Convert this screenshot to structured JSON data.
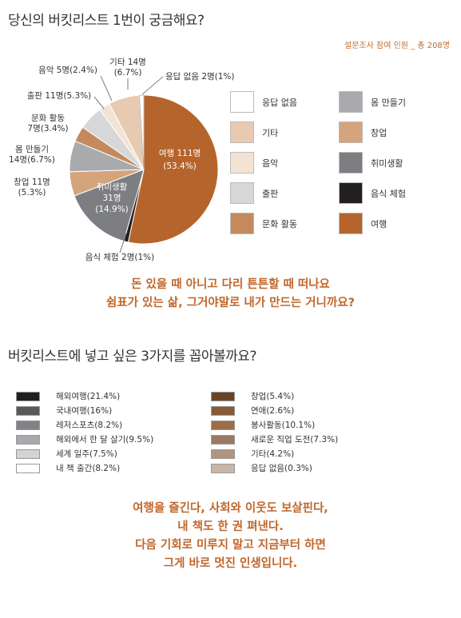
{
  "title1": "당신의 버킷리스트 1번이 궁금해요?",
  "survey_note": "설문조사 참여 인원 _ 총 208명",
  "chart_data": [
    {
      "type": "pie",
      "total_label": "설문조사 참여 인원 _ 총 208명",
      "slices": [
        {
          "name": "여행",
          "count": 111,
          "percent": 53.4,
          "color": "#b5652b",
          "label_lines": [
            "여행 111명",
            "(53.4%)"
          ]
        },
        {
          "name": "음식 체험",
          "count": 2,
          "percent": 1.0,
          "color": "#231f20",
          "label_lines": [
            "음식 체험 2명(1%)"
          ]
        },
        {
          "name": "취미생활",
          "count": 31,
          "percent": 14.9,
          "color": "#7d7e82",
          "label_lines": [
            "취미생활",
            "31명",
            "(14.9%)"
          ]
        },
        {
          "name": "창업",
          "count": 11,
          "percent": 5.3,
          "color": "#d4a47c",
          "label_lines": [
            "창업 11명",
            "(5.3%)"
          ]
        },
        {
          "name": "몸 만들기",
          "count": 14,
          "percent": 6.7,
          "color": "#a9aaad",
          "label_lines": [
            "몸 만들기",
            "14명(6.7%)"
          ]
        },
        {
          "name": "문화 활동",
          "count": 7,
          "percent": 3.4,
          "color": "#c48a5e",
          "label_lines": [
            "문화 활동",
            "7명(3.4%)"
          ]
        },
        {
          "name": "출판",
          "count": 11,
          "percent": 5.3,
          "color": "#d6d7d9",
          "label_lines": [
            "출판 11명(5.3%)"
          ]
        },
        {
          "name": "음악",
          "count": 5,
          "percent": 2.4,
          "color": "#f2e3d3",
          "label_lines": [
            "음악 5명(2.4%)"
          ]
        },
        {
          "name": "기타",
          "count": 14,
          "percent": 6.7,
          "color": "#e8cab0",
          "label_lines": [
            "기타 14명",
            "(6.7%)"
          ]
        },
        {
          "name": "응답 없음",
          "count": 2,
          "percent": 1.0,
          "color": "#ffffff",
          "label_lines": [
            "응답 없음 2명(1%)"
          ]
        }
      ],
      "legend": [
        {
          "label": "응답 없음",
          "color": "#ffffff"
        },
        {
          "label": "몸 만들기",
          "color": "#a9aaad"
        },
        {
          "label": "기타",
          "color": "#e8cab0"
        },
        {
          "label": "창업",
          "color": "#d4a47c"
        },
        {
          "label": "음악",
          "color": "#f2e3d3"
        },
        {
          "label": "취미생활",
          "color": "#7d7e82"
        },
        {
          "label": "출판",
          "color": "#d6d7d9"
        },
        {
          "label": "음식 체험",
          "color": "#231f20"
        },
        {
          "label": "문화 활동",
          "color": "#c48a5e"
        },
        {
          "label": "여행",
          "color": "#b5652b"
        }
      ]
    },
    {
      "type": "legend-list",
      "items": [
        {
          "label": "해외여행(21.4%)",
          "percent": 21.4,
          "color": "#231f20"
        },
        {
          "label": "국내여행(16%)",
          "percent": 16,
          "color": "#58595b"
        },
        {
          "label": "레저스포츠(8.2%)",
          "percent": 8.2,
          "color": "#808285"
        },
        {
          "label": "해외에서 한 달 살기(9.5%)",
          "percent": 9.5,
          "color": "#a7a9ac"
        },
        {
          "label": "세계 일주(7.5%)",
          "percent": 7.5,
          "color": "#d1d3d4"
        },
        {
          "label": "내 책 출간(8.2%)",
          "percent": 8.2,
          "color": "#ffffff"
        },
        {
          "label": "창업(5.4%)",
          "percent": 5.4,
          "color": "#6b4426"
        },
        {
          "label": "연애(2.6%)",
          "percent": 2.6,
          "color": "#8a5a36"
        },
        {
          "label": "봉사활동(10.1%)",
          "percent": 10.1,
          "color": "#a06c47"
        },
        {
          "label": "새로운 직업 도전(7.3%)",
          "percent": 7.3,
          "color": "#9a7a62"
        },
        {
          "label": "기타(4.2%)",
          "percent": 4.2,
          "color": "#b09580"
        },
        {
          "label": "응답 없음(0.3%)",
          "percent": 0.3,
          "color": "#c9b6a6"
        }
      ]
    }
  ],
  "quote1": [
    "돈 있을 때 아니고 다리 튼튼할 때 떠나요",
    "쉼표가 있는 삶, 그거야말로 내가 만드는 거니까요?"
  ],
  "title2": "버킷리스트에 넣고 싶은 3가지를 꼽아볼까요?",
  "quote2": [
    "여행을 즐긴다, 사회와 이웃도 보살핀다,",
    "내 책도 한 권 펴낸다.",
    "다음 기회로 미루지 말고 지금부터 하면",
    "그게 바로 멋진 인생입니다."
  ]
}
